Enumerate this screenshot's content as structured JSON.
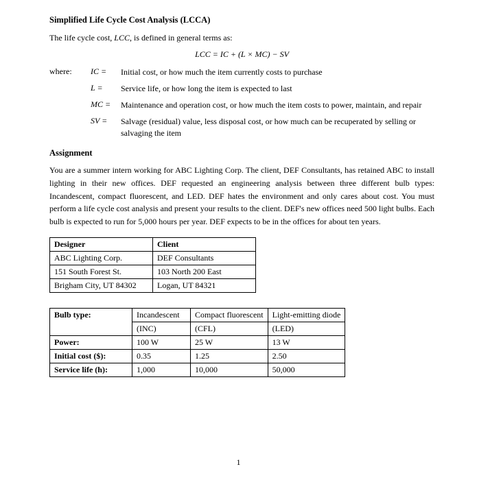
{
  "title": "Simplified Life Cycle Cost Analysis (LCCA)",
  "intro": "The life cycle cost, LCC, is defined in general terms as:",
  "formula": "LCC = IC + (L × MC) − SV",
  "where_label": "where:",
  "defs": [
    {
      "sym": "IC =",
      "desc": "Initial cost, or how much the item currently costs to purchase"
    },
    {
      "sym": "L =",
      "desc": "Service life, or how long the item is expected to last"
    },
    {
      "sym": "MC =",
      "desc": "Maintenance and operation cost, or how much the item costs to power, maintain, and repair"
    },
    {
      "sym": "SV =",
      "desc": "Salvage (residual) value, less disposal cost, or how much can be recuperated by selling or salvaging the item"
    }
  ],
  "assignment_heading": "Assignment",
  "assignment_text": "You are a summer intern working for ABC Lighting Corp. The client, DEF Consultants, has retained ABC to install lighting in their new offices. DEF requested an engineering analysis between three different bulb types: Incandescent, compact fluorescent, and LED. DEF hates the environment and only cares about cost. You must perform a life cycle cost analysis and present your results to the client. DEF's new offices need 500 light bulbs. Each bulb is expected to run for 5,000 hours per year. DEF expects to be in the offices for about ten years.",
  "info_table": {
    "headers": [
      "Designer",
      "Client"
    ],
    "rows": [
      [
        "ABC Lighting Corp.",
        "DEF Consultants"
      ],
      [
        "151 South Forest St.",
        "103 North 200 East"
      ],
      [
        "Brigham City, UT 84302",
        "Logan, UT 84321"
      ]
    ]
  },
  "bulb_table": {
    "row_labels": [
      "Bulb type:",
      "",
      "Power:",
      "Initial cost ($):",
      "Service life (h):"
    ],
    "cols": [
      [
        "Incandescent",
        "(INC)",
        "100 W",
        "0.35",
        "1,000"
      ],
      [
        "Compact fluorescent",
        "(CFL)",
        "25 W",
        "1.25",
        "10,000"
      ],
      [
        "Light-emitting diode",
        "(LED)",
        "13 W",
        "2.50",
        "50,000"
      ]
    ]
  },
  "page_number": "1"
}
